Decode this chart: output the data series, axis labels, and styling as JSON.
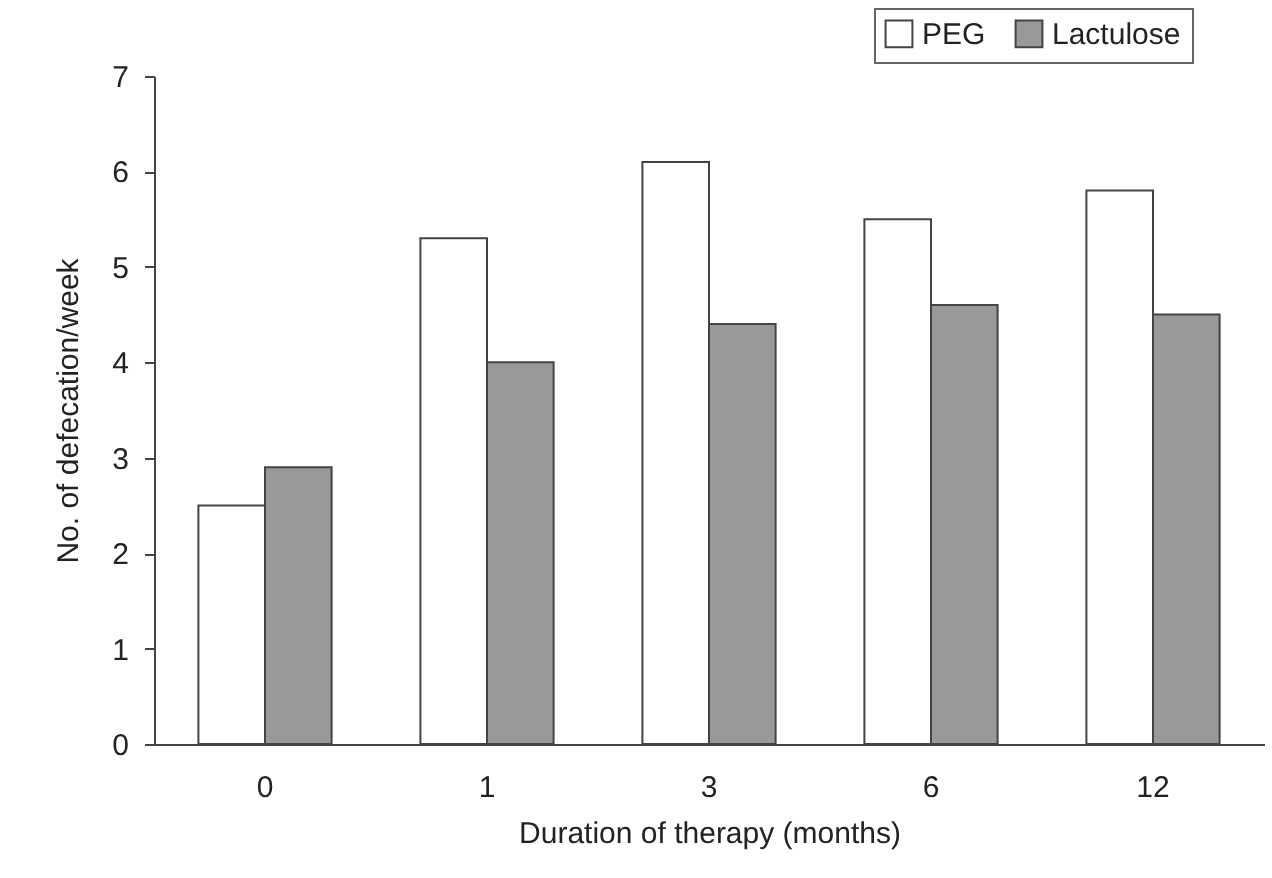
{
  "chart_data": {
    "type": "bar",
    "xlabel": "Duration of therapy (months)",
    "ylabel": "No. of defecation/week",
    "categories": [
      "0",
      "1",
      "3",
      "6",
      "12"
    ],
    "series": [
      {
        "name": "PEG",
        "color": "#ffffff",
        "values": [
          2.5,
          5.3,
          6.1,
          5.5,
          5.8
        ]
      },
      {
        "name": "Lactulose",
        "color": "#999999",
        "values": [
          2.9,
          4.0,
          4.4,
          4.6,
          4.5
        ]
      }
    ],
    "ylim": [
      0,
      7
    ],
    "yticks": [
      0,
      1,
      2,
      3,
      4,
      5,
      6,
      7
    ],
    "legend": "top right"
  }
}
